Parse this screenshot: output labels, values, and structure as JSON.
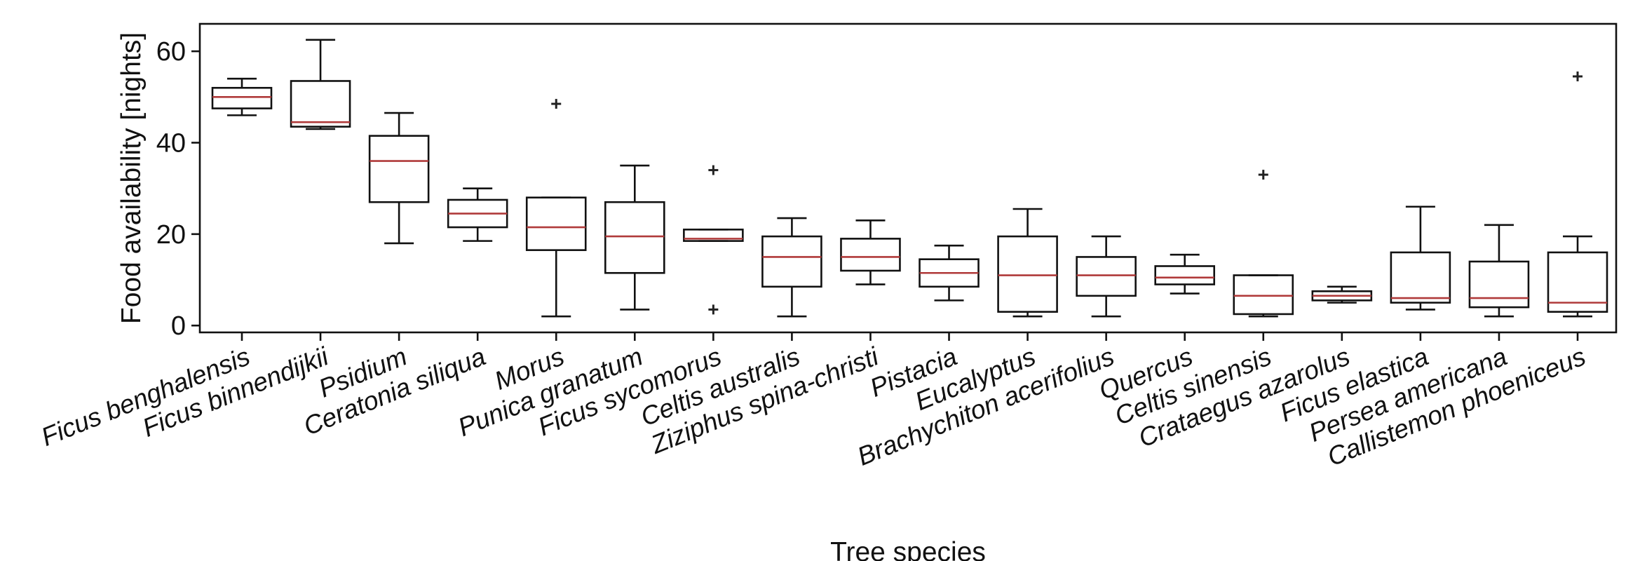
{
  "chart_data": {
    "type": "box",
    "xlabel": "Tree species",
    "ylabel": "Food availability [nights]",
    "ylim": [
      -1.5,
      66
    ],
    "yticks": [
      0,
      20,
      40,
      60
    ],
    "grid": false,
    "colors": {
      "box": "#111111",
      "median": "#b03a3a"
    },
    "categories": [
      "Ficus benghalensis",
      "Ficus binnendijkii",
      "Psidium",
      "Ceratonia siliqua",
      "Morus",
      "Punica granatum",
      "Ficus sycomorus",
      "Celtis australis",
      "Ziziphus spina-christi",
      "Pistacia",
      "Eucalyptus",
      "Brachychiton acerifolius",
      "Quercus",
      "Celtis sinensis",
      "Crataegus azarolus",
      "Ficus elastica",
      "Persea americana",
      "Callistemon phoeniceus"
    ],
    "boxes": [
      {
        "whisker_low": 46,
        "q1": 47.5,
        "median": 50,
        "q3": 52,
        "whisker_high": 54,
        "outliers": []
      },
      {
        "whisker_low": 43,
        "q1": 43.5,
        "median": 44.5,
        "q3": 53.5,
        "whisker_high": 62.5,
        "outliers": []
      },
      {
        "whisker_low": 18,
        "q1": 27,
        "median": 36,
        "q3": 41.5,
        "whisker_high": 46.5,
        "outliers": []
      },
      {
        "whisker_low": 18.5,
        "q1": 21.5,
        "median": 24.5,
        "q3": 27.5,
        "whisker_high": 30,
        "outliers": []
      },
      {
        "whisker_low": 2,
        "q1": 16.5,
        "median": 21.5,
        "q3": 28,
        "whisker_high": 28,
        "outliers": [
          48.5
        ]
      },
      {
        "whisker_low": 3.5,
        "q1": 11.5,
        "median": 19.5,
        "q3": 27,
        "whisker_high": 35,
        "outliers": []
      },
      {
        "whisker_low": 18.5,
        "q1": 18.5,
        "median": 19,
        "q3": 21,
        "whisker_high": 21,
        "outliers": [
          34,
          3.5
        ]
      },
      {
        "whisker_low": 2,
        "q1": 8.5,
        "median": 15,
        "q3": 19.5,
        "whisker_high": 23.5,
        "outliers": []
      },
      {
        "whisker_low": 9,
        "q1": 12,
        "median": 15,
        "q3": 19,
        "whisker_high": 23,
        "outliers": []
      },
      {
        "whisker_low": 5.5,
        "q1": 8.5,
        "median": 11.5,
        "q3": 14.5,
        "whisker_high": 17.5,
        "outliers": []
      },
      {
        "whisker_low": 2,
        "q1": 3,
        "median": 11,
        "q3": 19.5,
        "whisker_high": 25.5,
        "outliers": []
      },
      {
        "whisker_low": 2,
        "q1": 6.5,
        "median": 11,
        "q3": 15,
        "whisker_high": 19.5,
        "outliers": []
      },
      {
        "whisker_low": 7,
        "q1": 9,
        "median": 10.5,
        "q3": 13,
        "whisker_high": 15.5,
        "outliers": []
      },
      {
        "whisker_low": 2,
        "q1": 2.5,
        "median": 6.5,
        "q3": 11,
        "whisker_high": 11,
        "outliers": [
          33
        ]
      },
      {
        "whisker_low": 5,
        "q1": 5.5,
        "median": 6.5,
        "q3": 7.5,
        "whisker_high": 8.5,
        "outliers": []
      },
      {
        "whisker_low": 3.5,
        "q1": 5,
        "median": 6,
        "q3": 16,
        "whisker_high": 26,
        "outliers": []
      },
      {
        "whisker_low": 2,
        "q1": 4,
        "median": 6,
        "q3": 14,
        "whisker_high": 22,
        "outliers": []
      },
      {
        "whisker_low": 2,
        "q1": 3,
        "median": 5,
        "q3": 16,
        "whisker_high": 19.5,
        "outliers": [
          54.5
        ]
      }
    ]
  }
}
